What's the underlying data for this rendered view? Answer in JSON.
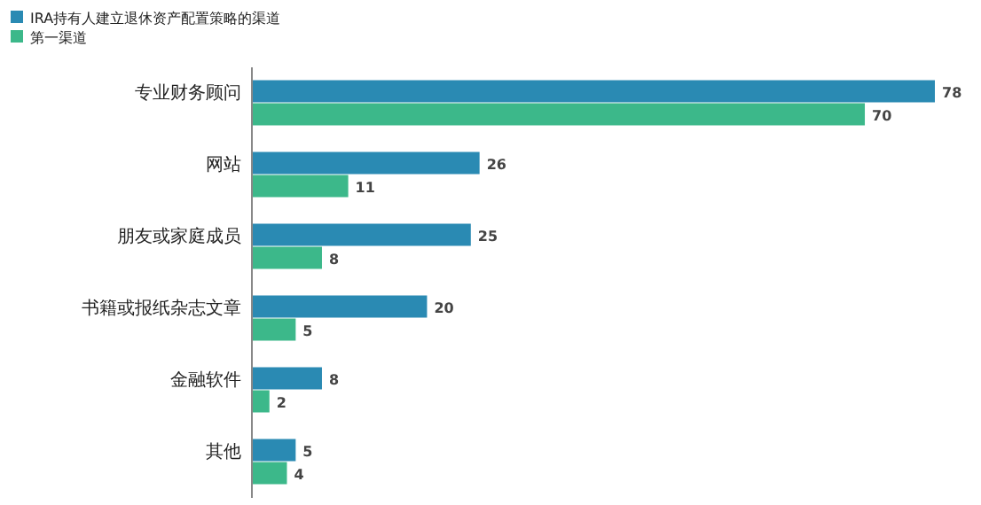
{
  "chart_data": {
    "type": "bar",
    "orientation": "horizontal",
    "legend": "top left",
    "data_labels": true,
    "categories": [
      "专业财务顾问",
      "网站",
      "朋友或家庭成员",
      "书籍或报纸杂志文章",
      "金融软件",
      "其他"
    ],
    "series": [
      {
        "name": "IRA持有人建立退休资产配置策略的渠道",
        "color": "#2a8ab3",
        "values": [
          78,
          26,
          25,
          20,
          8,
          5
        ]
      },
      {
        "name": "第一渠道",
        "color": "#3cb88a",
        "values": [
          70,
          11,
          8,
          5,
          2,
          4
        ]
      }
    ]
  }
}
